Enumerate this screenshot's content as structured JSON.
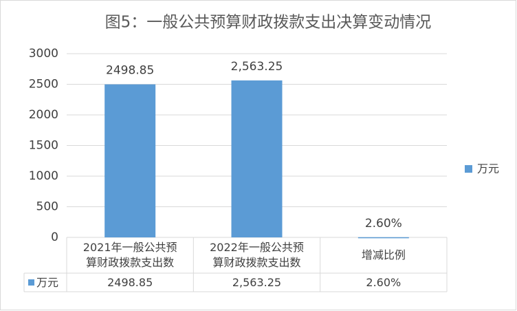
{
  "chart_data": {
    "type": "bar",
    "title": "图5：一般公共预算财政拨款支出决算变动情况",
    "categories": [
      "2021年一般公共预算财政拨款支出数",
      "2022年一般公共预算财政拨款支出数",
      "增减比例"
    ],
    "series": [
      {
        "name": "万元",
        "color": "#5b9bd5",
        "values": [
          2498.85,
          2563.25,
          2.6
        ],
        "value_labels": [
          "2498.85",
          "2,563.25",
          "2.60%"
        ]
      }
    ],
    "ylim": [
      0,
      3000
    ],
    "yticks": [
      0,
      500,
      1000,
      1500,
      2000,
      2500,
      3000
    ],
    "grid": true,
    "legend": "right",
    "data_table": true
  }
}
